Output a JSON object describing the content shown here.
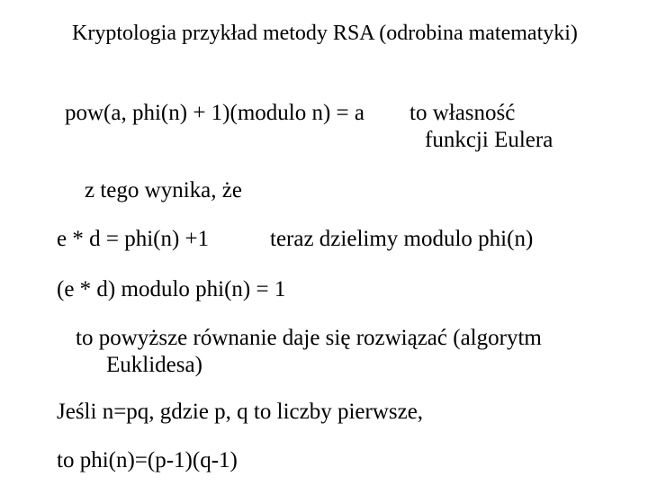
{
  "colors": {
    "background": "#ffffff",
    "text": "#000000"
  },
  "typography": {
    "font_family": "Times New Roman",
    "title_fontsize_pt": 18,
    "body_fontsize_pt": 19
  },
  "title": "Kryptologia przykład metody RSA  (odrobina matematyki)",
  "line1": {
    "left": "pow(a,  phi(n) + 1)(modulo n) = a",
    "right_line1": "to własność",
    "right_line2": "funkcji Eulera"
  },
  "line2": "z tego wynika, że",
  "line3": {
    "left": "e * d = phi(n) +1",
    "right": "teraz dzielimy modulo phi(n)"
  },
  "line4": "(e * d) modulo phi(n) = 1",
  "line5a": "to powyższe równanie daje się rozwiązać (algorytm",
  "line5b": "Euklidesa)",
  "line6": "Jeśli  n=pq,  gdzie p, q to liczby pierwsze,",
  "line7": "to phi(n)=(p-1)(q-1)"
}
